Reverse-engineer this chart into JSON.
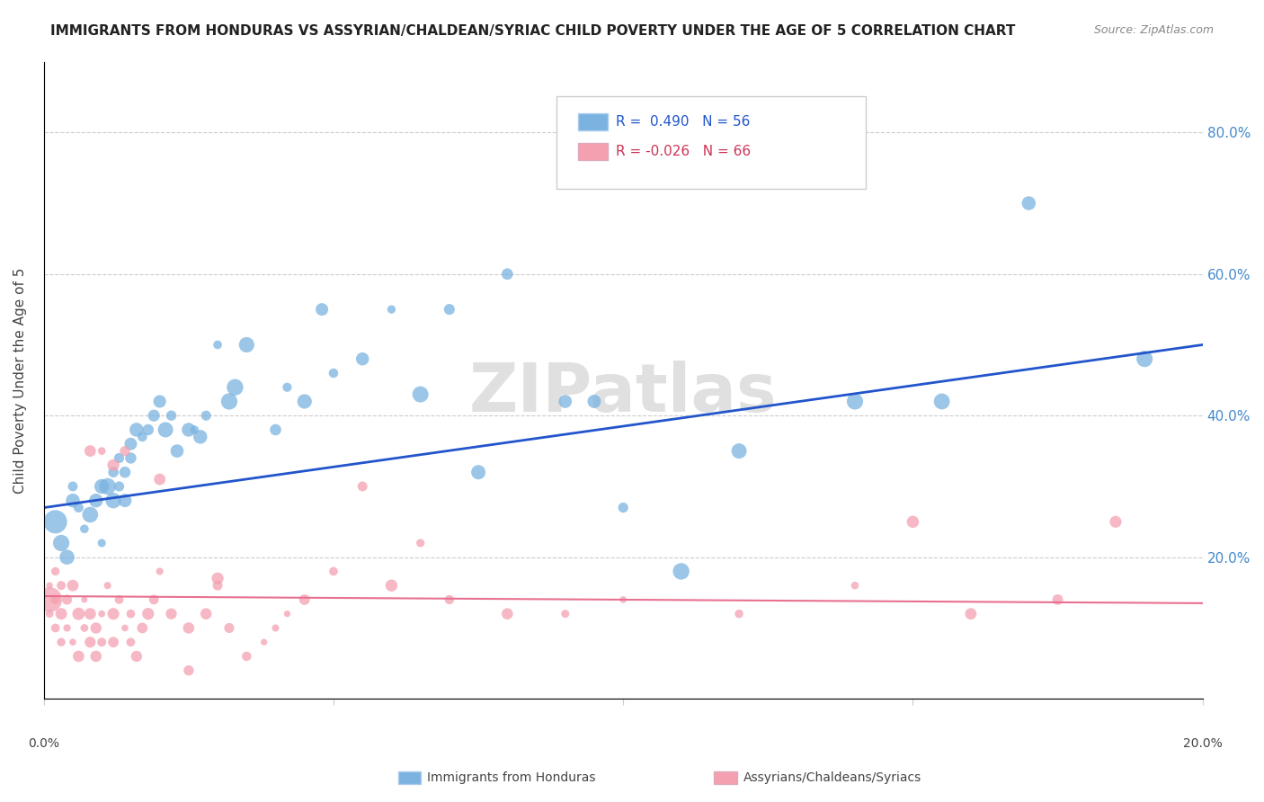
{
  "title": "IMMIGRANTS FROM HONDURAS VS ASSYRIAN/CHALDEAN/SYRIAC CHILD POVERTY UNDER THE AGE OF 5 CORRELATION CHART",
  "source": "Source: ZipAtlas.com",
  "ylabel": "Child Poverty Under the Age of 5",
  "xlim": [
    0.0,
    0.2
  ],
  "ylim": [
    0.0,
    0.9
  ],
  "yticks": [
    0.0,
    0.2,
    0.4,
    0.6,
    0.8
  ],
  "ytick_labels": [
    "",
    "20.0%",
    "40.0%",
    "60.0%",
    "80.0%"
  ],
  "blue_color": "#7ab3e0",
  "pink_color": "#f4a0b0",
  "blue_line_color": "#2255cc",
  "pink_line_color": "#e87090",
  "watermark": "ZIPatlas",
  "blue_scatter_x": [
    0.002,
    0.003,
    0.004,
    0.005,
    0.005,
    0.006,
    0.007,
    0.008,
    0.009,
    0.01,
    0.01,
    0.011,
    0.012,
    0.012,
    0.013,
    0.013,
    0.014,
    0.014,
    0.015,
    0.015,
    0.016,
    0.017,
    0.018,
    0.019,
    0.02,
    0.021,
    0.022,
    0.023,
    0.025,
    0.026,
    0.027,
    0.028,
    0.03,
    0.032,
    0.033,
    0.035,
    0.04,
    0.042,
    0.045,
    0.048,
    0.05,
    0.055,
    0.06,
    0.065,
    0.07,
    0.075,
    0.08,
    0.09,
    0.095,
    0.1,
    0.11,
    0.12,
    0.14,
    0.155,
    0.17,
    0.19
  ],
  "blue_scatter_y": [
    0.25,
    0.22,
    0.2,
    0.28,
    0.3,
    0.27,
    0.24,
    0.26,
    0.28,
    0.3,
    0.22,
    0.3,
    0.28,
    0.32,
    0.34,
    0.3,
    0.32,
    0.28,
    0.36,
    0.34,
    0.38,
    0.37,
    0.38,
    0.4,
    0.42,
    0.38,
    0.4,
    0.35,
    0.38,
    0.38,
    0.37,
    0.4,
    0.5,
    0.42,
    0.44,
    0.5,
    0.38,
    0.44,
    0.42,
    0.55,
    0.46,
    0.48,
    0.55,
    0.43,
    0.55,
    0.32,
    0.6,
    0.42,
    0.42,
    0.27,
    0.18,
    0.35,
    0.42,
    0.42,
    0.7,
    0.48
  ],
  "pink_scatter_x": [
    0.001,
    0.001,
    0.001,
    0.002,
    0.002,
    0.002,
    0.003,
    0.003,
    0.003,
    0.004,
    0.004,
    0.005,
    0.005,
    0.006,
    0.006,
    0.007,
    0.007,
    0.008,
    0.008,
    0.009,
    0.009,
    0.01,
    0.01,
    0.011,
    0.012,
    0.012,
    0.013,
    0.014,
    0.015,
    0.015,
    0.016,
    0.017,
    0.018,
    0.019,
    0.02,
    0.022,
    0.025,
    0.025,
    0.028,
    0.03,
    0.032,
    0.035,
    0.038,
    0.04,
    0.042,
    0.045,
    0.05,
    0.055,
    0.06,
    0.065,
    0.07,
    0.08,
    0.09,
    0.1,
    0.12,
    0.14,
    0.15,
    0.16,
    0.175,
    0.185,
    0.008,
    0.01,
    0.012,
    0.014,
    0.02,
    0.03
  ],
  "pink_scatter_y": [
    0.14,
    0.12,
    0.16,
    0.1,
    0.14,
    0.18,
    0.12,
    0.16,
    0.08,
    0.14,
    0.1,
    0.16,
    0.08,
    0.12,
    0.06,
    0.1,
    0.14,
    0.12,
    0.08,
    0.1,
    0.06,
    0.12,
    0.08,
    0.16,
    0.12,
    0.08,
    0.14,
    0.1,
    0.12,
    0.08,
    0.06,
    0.1,
    0.12,
    0.14,
    0.18,
    0.12,
    0.1,
    0.04,
    0.12,
    0.16,
    0.1,
    0.06,
    0.08,
    0.1,
    0.12,
    0.14,
    0.18,
    0.3,
    0.16,
    0.22,
    0.14,
    0.12,
    0.12,
    0.14,
    0.12,
    0.16,
    0.25,
    0.12,
    0.14,
    0.25,
    0.35,
    0.35,
    0.33,
    0.35,
    0.31,
    0.17
  ],
  "blue_line_x": [
    0.0,
    0.2
  ],
  "blue_line_y": [
    0.27,
    0.5
  ],
  "pink_line_x": [
    0.0,
    0.2
  ],
  "pink_line_y": [
    0.145,
    0.135
  ]
}
